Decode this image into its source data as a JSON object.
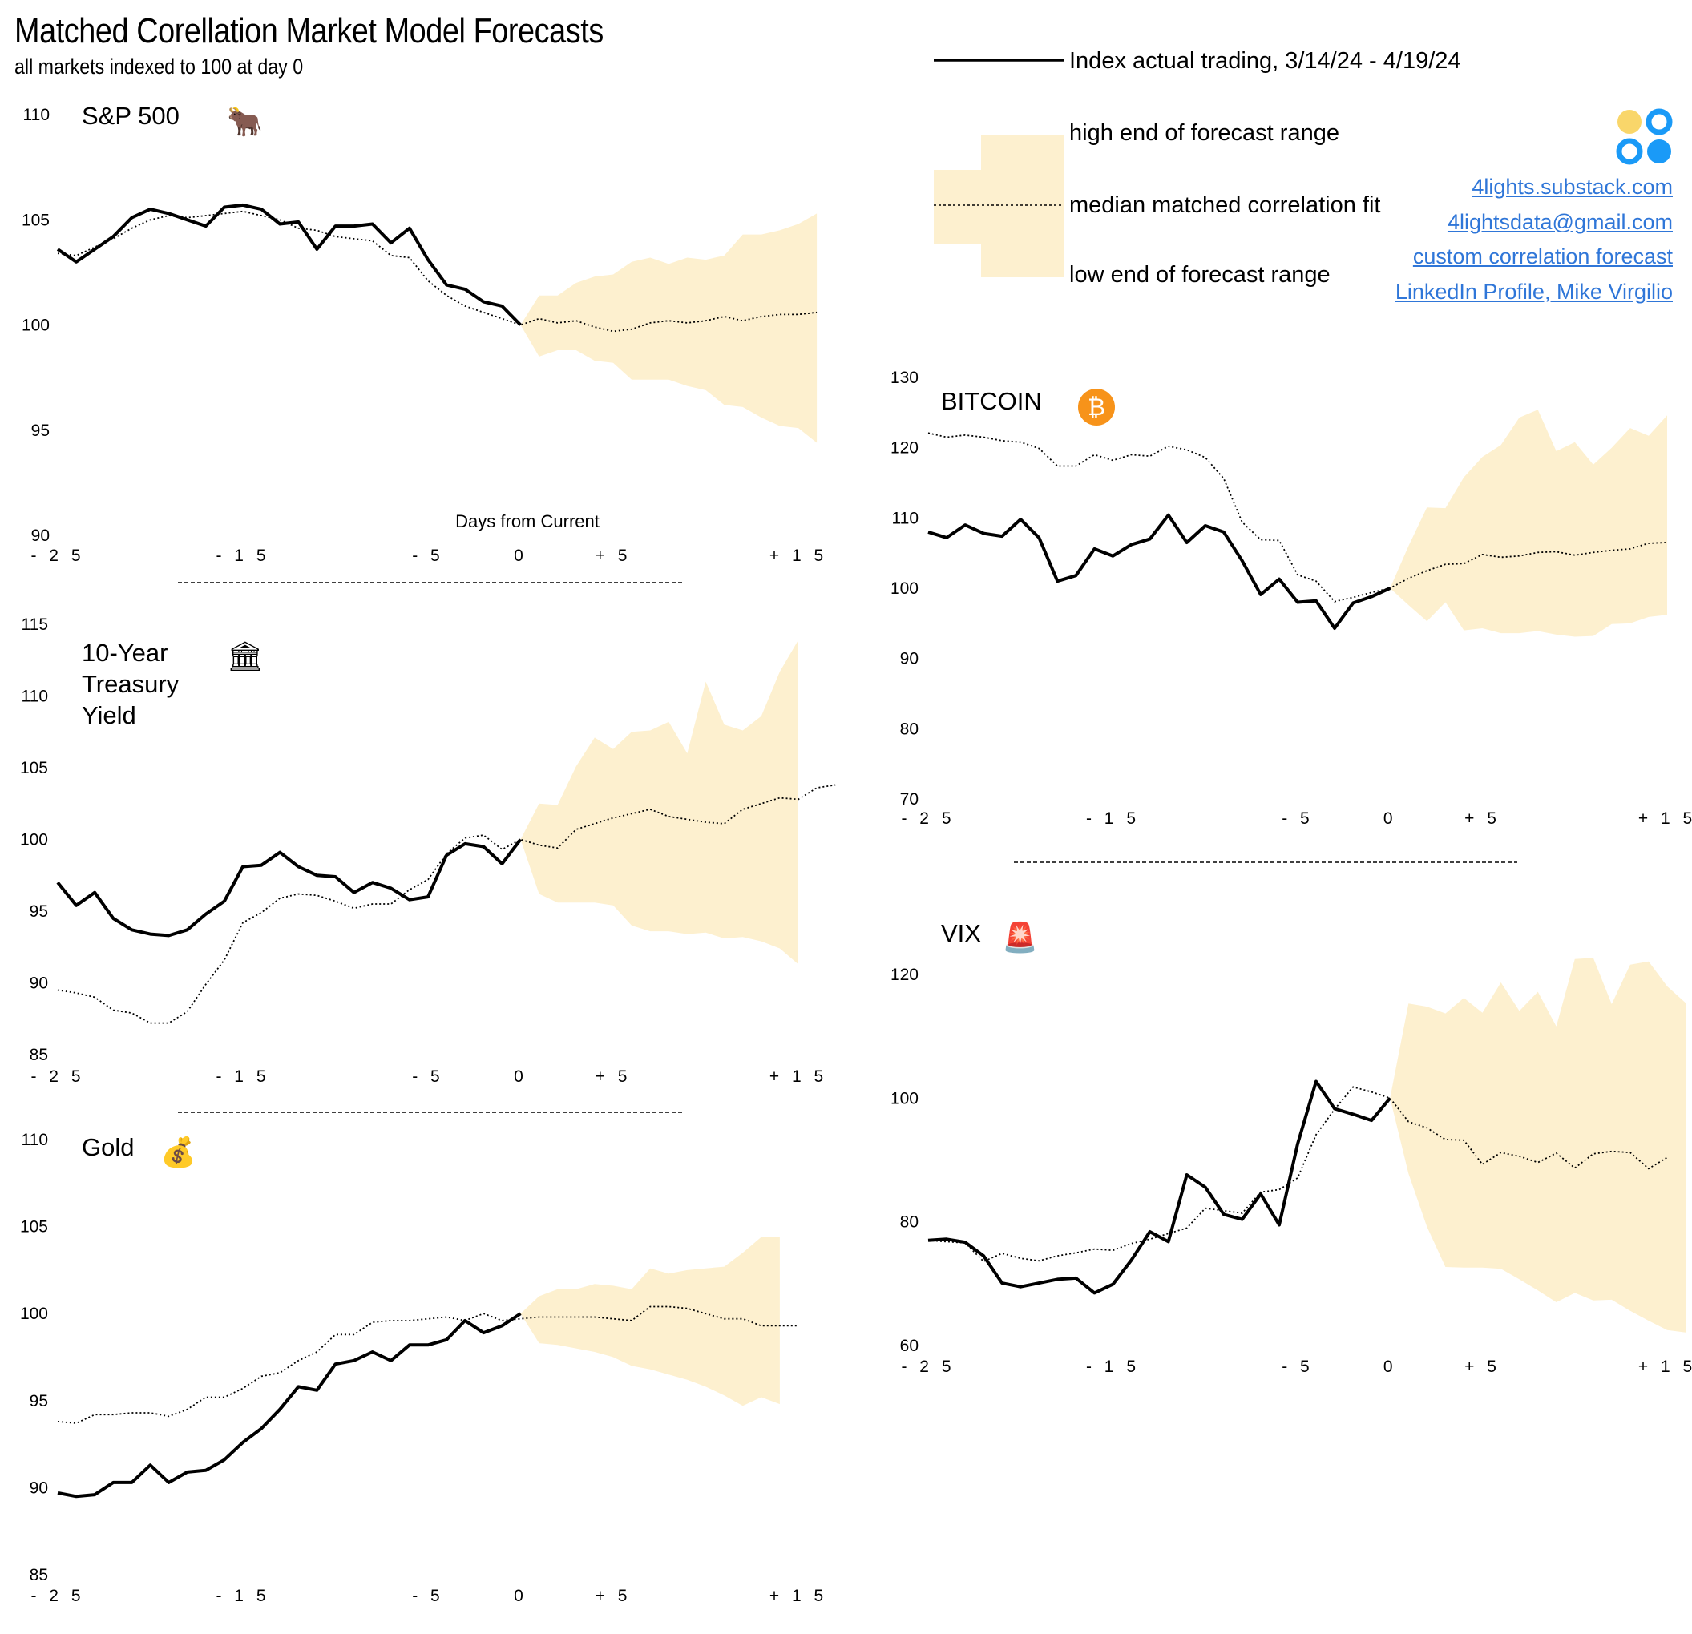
{
  "header": {
    "title": "Matched Corellation Market Model Forecasts",
    "subtitle": "all markets indexed to 100 at day 0"
  },
  "legend": {
    "actual": "Index actual trading, 3/14/24 - 4/19/24",
    "high": "high end of forecast range",
    "median": "median matched correlation fit",
    "low": "low end of forecast range"
  },
  "links": [
    "4lights.substack.com",
    "4lightsdata@gmail.com",
    "custom correlation forecast",
    "LinkedIn Profile, Mike Virgilio"
  ],
  "colors": {
    "band": "#fdf0cf",
    "line": "#000000",
    "link": "#2f76d8",
    "logo_yellow": "#f9d66a",
    "logo_blue": "#1a9af7"
  },
  "x_axis_label": "Days from Current",
  "chart_data": [
    {
      "id": "sp500",
      "type": "line",
      "title": "S&P 500",
      "icon": "bull-icon",
      "ylim": [
        90,
        110
      ],
      "yticks": [
        90,
        95,
        100,
        105,
        110
      ],
      "xlim": [
        -25,
        15
      ],
      "xticks": [
        "-25",
        "-15",
        "-5",
        "0",
        "+5",
        "+15"
      ],
      "xtick_values": [
        -25,
        -15,
        -5,
        0,
        5,
        15
      ],
      "xlabel": "Days from Current",
      "actual": [
        103.6,
        103.0,
        103.6,
        104.2,
        105.1,
        105.5,
        105.3,
        105.0,
        104.7,
        105.6,
        105.7,
        105.5,
        104.8,
        104.9,
        103.6,
        104.7,
        104.7,
        104.8,
        103.9,
        104.6,
        103.1,
        101.9,
        101.7,
        101.1,
        100.9,
        100.0
      ],
      "median": [
        103.4,
        103.3,
        103.7,
        104.1,
        104.6,
        105.0,
        105.2,
        105.1,
        105.2,
        105.3,
        105.4,
        105.2,
        105.0,
        104.6,
        104.5,
        104.2,
        104.1,
        104.0,
        103.3,
        103.2,
        102.1,
        101.4,
        100.9,
        100.6,
        100.3,
        100.0,
        100.3,
        100.1,
        100.2,
        99.9,
        99.7,
        99.8,
        100.1,
        100.2,
        100.1,
        100.2,
        100.4,
        100.2,
        100.4,
        100.5,
        100.5,
        100.6
      ],
      "band_high": [
        100.0,
        101.4,
        101.4,
        102.0,
        102.3,
        102.4,
        103.0,
        103.2,
        102.9,
        103.2,
        103.1,
        103.3,
        104.3,
        104.3,
        104.5,
        104.8,
        105.3
      ],
      "band_low": [
        100.0,
        98.5,
        98.8,
        98.8,
        98.3,
        98.2,
        97.4,
        97.4,
        97.4,
        97.1,
        96.9,
        96.2,
        96.1,
        95.6,
        95.2,
        95.1,
        94.4
      ]
    },
    {
      "id": "treasury",
      "type": "line",
      "title": [
        "10-Year",
        "Treasury",
        "Yield"
      ],
      "icon": "bank-icon",
      "ylim": [
        85,
        115
      ],
      "yticks": [
        85,
        90,
        95,
        100,
        105,
        110,
        115
      ],
      "xlim": [
        -25,
        15
      ],
      "xticks": [
        "-25",
        "-15",
        "-5",
        "0",
        "+5",
        "+15"
      ],
      "xtick_values": [
        -25,
        -15,
        -5,
        0,
        5,
        15
      ],
      "actual": [
        97.0,
        95.4,
        96.3,
        94.5,
        93.7,
        93.4,
        93.3,
        93.7,
        94.8,
        95.7,
        98.1,
        98.2,
        99.1,
        98.1,
        97.5,
        97.4,
        96.3,
        97.0,
        96.6,
        95.8,
        96.0,
        98.9,
        99.7,
        99.5,
        98.3,
        100.0
      ],
      "median": [
        89.5,
        89.3,
        89.0,
        88.1,
        87.9,
        87.2,
        87.2,
        88.0,
        89.9,
        91.6,
        94.2,
        94.9,
        95.9,
        96.2,
        96.1,
        95.7,
        95.2,
        95.5,
        95.5,
        96.5,
        97.2,
        99.0,
        100.1,
        100.3,
        99.3,
        100.0,
        99.6,
        99.4,
        100.7,
        101.1,
        101.5,
        101.8,
        102.1,
        101.6,
        101.4,
        101.2,
        101.1,
        102.1,
        102.5,
        102.9,
        102.8,
        103.6,
        103.8
      ],
      "band_high": [
        100.0,
        102.5,
        102.4,
        105.1,
        107.1,
        106.3,
        107.5,
        107.6,
        108.2,
        106.0,
        111.0,
        108.0,
        107.6,
        108.6,
        111.7,
        113.9
      ],
      "band_low": [
        100.0,
        96.2,
        95.6,
        95.6,
        95.6,
        95.4,
        94.0,
        93.6,
        93.6,
        93.4,
        93.5,
        93.1,
        93.2,
        92.9,
        92.4,
        91.3
      ]
    },
    {
      "id": "gold",
      "type": "line",
      "title": "Gold",
      "icon": "gold-bars-icon",
      "ylim": [
        85,
        110
      ],
      "yticks": [
        85,
        90,
        95,
        100,
        105,
        110
      ],
      "xlim": [
        -25,
        15
      ],
      "xticks": [
        "-25",
        "-15",
        "-5",
        "0",
        "+5",
        "+15"
      ],
      "xtick_values": [
        -25,
        -15,
        -5,
        0,
        5,
        15
      ],
      "actual": [
        89.7,
        89.5,
        89.6,
        90.3,
        90.3,
        91.3,
        90.3,
        90.9,
        91.0,
        91.6,
        92.6,
        93.4,
        94.5,
        95.8,
        95.6,
        97.1,
        97.3,
        97.8,
        97.3,
        98.2,
        98.2,
        98.5,
        99.6,
        98.9,
        99.3,
        100.0
      ],
      "median": [
        93.8,
        93.7,
        94.2,
        94.2,
        94.3,
        94.3,
        94.1,
        94.5,
        95.2,
        95.2,
        95.7,
        96.4,
        96.6,
        97.3,
        97.8,
        98.8,
        98.8,
        99.5,
        99.6,
        99.6,
        99.7,
        99.8,
        99.6,
        100.0,
        99.6,
        99.7,
        99.8,
        99.8,
        99.8,
        99.8,
        99.7,
        99.6,
        100.4,
        100.4,
        100.3,
        100.0,
        99.7,
        99.7,
        99.3,
        99.3,
        99.3
      ],
      "band_high": [
        100.0,
        101.0,
        101.4,
        101.4,
        101.7,
        101.6,
        101.4,
        102.6,
        102.3,
        102.5,
        102.6,
        102.7,
        103.5,
        104.4,
        104.4
      ],
      "band_low": [
        100.0,
        98.3,
        98.2,
        98.0,
        97.8,
        97.5,
        97.0,
        96.8,
        96.5,
        96.2,
        95.8,
        95.3,
        94.7,
        95.2,
        94.8
      ]
    },
    {
      "id": "bitcoin",
      "type": "line",
      "title": "BITCOIN",
      "icon": "bitcoin-icon",
      "ylim": [
        70,
        130
      ],
      "yticks": [
        70,
        80,
        90,
        100,
        110,
        120,
        130
      ],
      "xlim": [
        -25,
        15
      ],
      "xticks": [
        "-25",
        "-15",
        "-5",
        "0",
        "+5",
        "+15"
      ],
      "xtick_values": [
        -25,
        -15,
        -5,
        0,
        5,
        15
      ],
      "actual": [
        108.0,
        107.2,
        109.0,
        107.8,
        107.4,
        109.8,
        107.2,
        101.0,
        101.8,
        105.6,
        104.6,
        106.2,
        107.0,
        110.4,
        106.5,
        108.9,
        108.0,
        103.9,
        99.1,
        101.3,
        98.0,
        98.2,
        94.3,
        97.9,
        98.8,
        100.0
      ],
      "median": [
        122.1,
        121.5,
        121.8,
        121.5,
        121.0,
        120.8,
        119.9,
        117.4,
        117.4,
        119.0,
        118.2,
        119.0,
        118.8,
        120.2,
        119.7,
        118.6,
        115.6,
        109.4,
        106.9,
        106.8,
        101.9,
        101.0,
        98.1,
        98.7,
        99.4,
        100.0,
        101.4,
        102.5,
        103.4,
        103.5,
        104.8,
        104.4,
        104.6,
        105.1,
        105.2,
        104.7,
        105.1,
        105.4,
        105.6,
        106.4,
        106.5
      ],
      "band_high": [
        100.0,
        106.0,
        111.5,
        111.4,
        115.8,
        118.7,
        120.4,
        124.3,
        125.4,
        119.5,
        120.8,
        117.6,
        120.0,
        122.8,
        121.7,
        124.6
      ],
      "band_low": [
        100.0,
        97.6,
        95.3,
        98.0,
        94.0,
        94.3,
        93.6,
        93.6,
        93.9,
        93.4,
        93.1,
        93.2,
        94.9,
        95.0,
        95.9,
        96.2
      ]
    },
    {
      "id": "vix",
      "type": "line",
      "title": "VIX",
      "icon": "siren-icon",
      "ylim": [
        60,
        120
      ],
      "yticks": [
        60,
        80,
        100,
        120
      ],
      "xlim": [
        -25,
        15
      ],
      "xticks": [
        "-25",
        "-15",
        "-5",
        "0",
        "+5",
        "+15"
      ],
      "xtick_values": [
        -25,
        -15,
        -5,
        0,
        5,
        15
      ],
      "actual": [
        77.0,
        77.2,
        76.7,
        74.5,
        70.1,
        69.5,
        70.1,
        70.7,
        70.9,
        68.5,
        69.9,
        73.8,
        78.4,
        76.8,
        87.6,
        85.6,
        81.2,
        80.4,
        84.5,
        79.5,
        92.6,
        102.7,
        98.3,
        97.4,
        96.4,
        100.0
      ],
      "median": [
        77.0,
        76.8,
        76.6,
        73.6,
        74.9,
        74.1,
        73.7,
        74.5,
        75.0,
        75.6,
        75.4,
        76.5,
        77.2,
        78.1,
        79.0,
        82.2,
        81.8,
        81.4,
        84.8,
        85.2,
        87.1,
        94.1,
        98.2,
        101.8,
        101.0,
        100.0,
        96.2,
        95.2,
        93.3,
        93.2,
        89.3,
        91.2,
        90.6,
        89.6,
        91.1,
        88.7,
        91.0,
        91.4,
        91.2,
        88.6,
        90.4
      ],
      "band_high": [
        100.0,
        115.3,
        114.8,
        113.7,
        116.2,
        113.8,
        118.7,
        114.1,
        117.2,
        111.6,
        122.5,
        122.7,
        115.2,
        121.6,
        122.1,
        118.1,
        115.4
      ],
      "band_low": [
        100.0,
        87.8,
        79.2,
        72.7,
        72.6,
        72.6,
        72.4,
        70.7,
        68.9,
        67.0,
        68.5,
        67.3,
        67.4,
        65.6,
        64.0,
        62.5,
        62.1
      ]
    }
  ]
}
